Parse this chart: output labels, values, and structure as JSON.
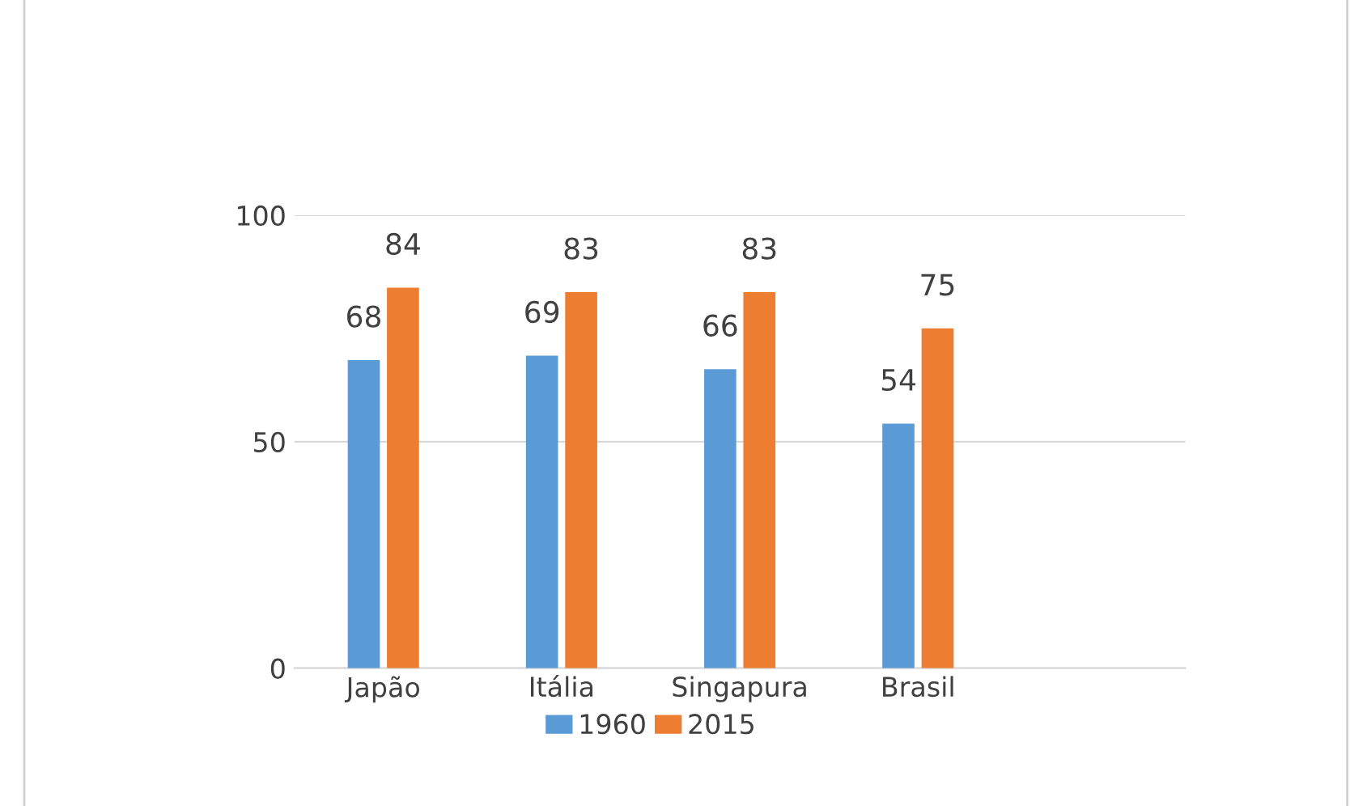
{
  "chart_data": {
    "type": "bar",
    "categories": [
      "Japão",
      "Itália",
      "Singapura",
      "Brasil",
      null
    ],
    "series": [
      {
        "name": "1960",
        "color": "#5b9bd5",
        "values": [
          68,
          69,
          66,
          54,
          null
        ]
      },
      {
        "name": "2015",
        "color": "#ed7d31",
        "values": [
          84,
          83,
          83,
          75,
          null
        ]
      }
    ],
    "ylim": [
      0,
      100
    ],
    "yticks": [
      0,
      50,
      100
    ],
    "grid": "y",
    "legend": "bottom",
    "data_labels": true
  }
}
